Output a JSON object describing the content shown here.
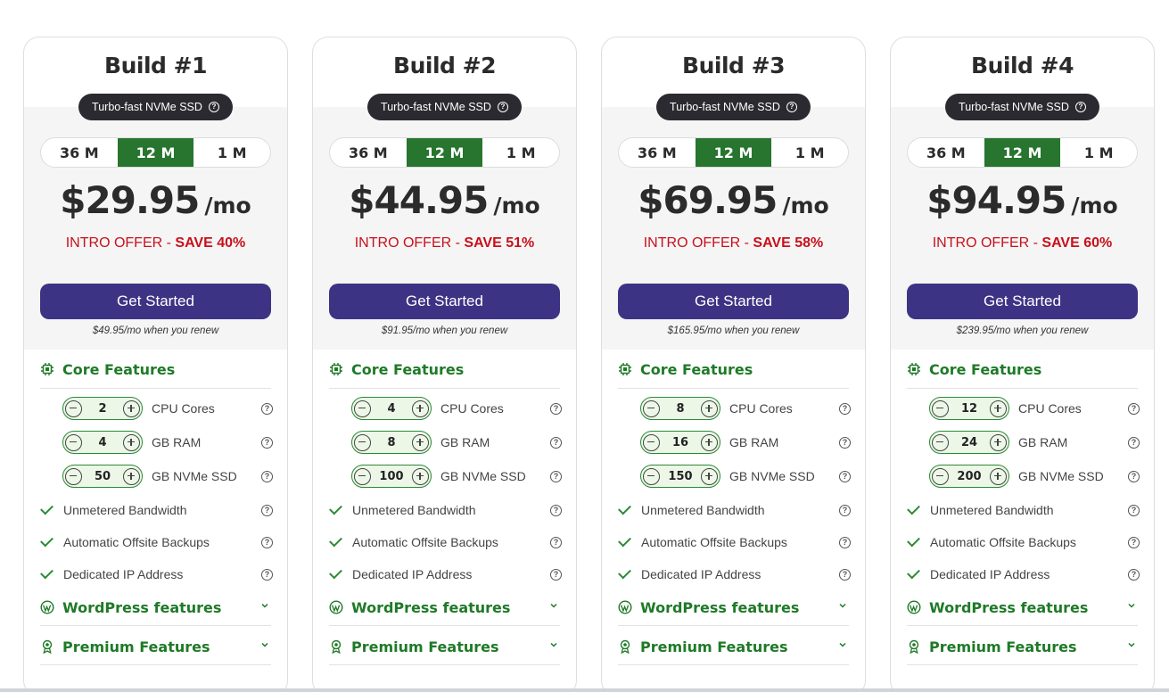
{
  "common": {
    "ssd_badge": "Turbo-fast NVMe SSD",
    "terms": [
      "36 M",
      "12 M",
      "1 M"
    ],
    "active_term": "12 M",
    "per_label": "/mo",
    "offer_prefix": "INTRO OFFER - ",
    "cta_label": "Get Started",
    "renew_suffix": "/mo when you renew",
    "core_features_label": "Core Features",
    "spec_labels": [
      "CPU Cores",
      "GB RAM",
      "GB NVMe SSD"
    ],
    "features": [
      "Unmetered Bandwidth",
      "Automatic Offsite Backups",
      "Dedicated IP Address"
    ],
    "wordpress_label": "WordPress features",
    "premium_label": "Premium Features",
    "help_glyph": "?",
    "accent_green": "#27752e",
    "cta_purple": "#3d3384",
    "offer_red": "#c8101b"
  },
  "plans": [
    {
      "title": "Build #1",
      "price": "$29.95",
      "save": "SAVE 40%",
      "renew_price": "$49.95",
      "cpu": "2",
      "ram": "4",
      "ssd": "50"
    },
    {
      "title": "Build #2",
      "price": "$44.95",
      "save": "SAVE 51%",
      "renew_price": "$91.95",
      "cpu": "4",
      "ram": "8",
      "ssd": "100"
    },
    {
      "title": "Build #3",
      "price": "$69.95",
      "save": "SAVE 58%",
      "renew_price": "$165.95",
      "cpu": "8",
      "ram": "16",
      "ssd": "150"
    },
    {
      "title": "Build #4",
      "price": "$94.95",
      "save": "SAVE 60%",
      "renew_price": "$239.95",
      "cpu": "12",
      "ram": "24",
      "ssd": "200"
    }
  ]
}
